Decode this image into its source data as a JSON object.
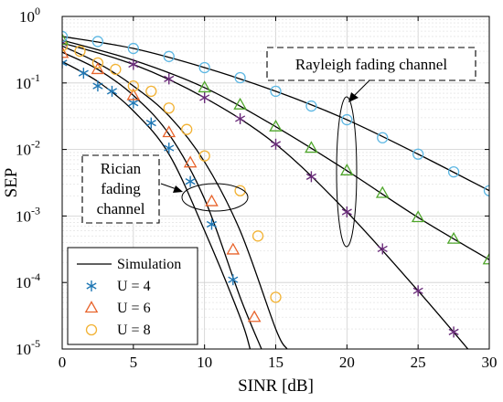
{
  "chart_data": {
    "type": "line",
    "xlabel": "SINR [dB]",
    "ylabel": "SEP",
    "xlim": [
      0,
      30
    ],
    "ylim": [
      1e-05,
      1
    ],
    "yscale": "log",
    "grid": true,
    "xticks": [
      0,
      5,
      10,
      15,
      20,
      25,
      30
    ],
    "xtick_labels": [
      "0",
      "5",
      "10",
      "15",
      "20",
      "25",
      "30"
    ],
    "yticks": [
      1e-05,
      0.0001,
      0.001,
      0.01,
      0.1,
      1
    ],
    "ytick_labels": [
      {
        "base": "10",
        "exp": "-5"
      },
      {
        "base": "10",
        "exp": "-4"
      },
      {
        "base": "10",
        "exp": "-3"
      },
      {
        "base": "10",
        "exp": "-2"
      },
      {
        "base": "10",
        "exp": "-1"
      },
      {
        "base": "10",
        "exp": "0"
      }
    ],
    "legend": {
      "position": "bottom-left",
      "entries": [
        {
          "label": "Simulation",
          "style": "line",
          "color": "#000000"
        },
        {
          "label": "U = 4",
          "style": "asterisk",
          "color": "#1f77b4"
        },
        {
          "label": "U = 6",
          "style": "triangle",
          "color": "#e8642c"
        },
        {
          "label": "U = 8",
          "style": "circle",
          "color": "#f2b233"
        }
      ]
    },
    "annotations": [
      {
        "lines": [
          "Rayleigh fading channel"
        ]
      },
      {
        "lines": [
          "Rician",
          "fading",
          "channel"
        ]
      }
    ],
    "series": [
      {
        "name": "U = 4",
        "group": "Rician",
        "marker": "asterisk",
        "color": "#1f77b4",
        "curve_x": [
          0,
          2.5,
          5,
          7.5,
          10,
          12.5,
          13.2
        ],
        "curve_y": [
          0.21,
          0.105,
          0.038,
          0.0085,
          0.0006,
          3e-05,
          1e-05
        ],
        "x": [
          0,
          1.5,
          2.5,
          3.5,
          5,
          6.25,
          7.5,
          9,
          10.5,
          12
        ],
        "y": [
          0.2,
          0.14,
          0.09,
          0.075,
          0.05,
          0.025,
          0.0105,
          0.0033,
          0.00075,
          0.00011
        ]
      },
      {
        "name": "U = 6",
        "group": "Rician",
        "marker": "triangle",
        "color": "#e8642c",
        "curve_x": [
          0,
          2.5,
          5,
          7.5,
          10,
          12.5,
          14
        ],
        "curve_y": [
          0.29,
          0.16,
          0.065,
          0.017,
          0.0018,
          6e-05,
          1e-05
        ],
        "x": [
          0,
          2.5,
          5,
          7.5,
          9,
          10.5,
          12,
          13.5
        ],
        "y": [
          0.28,
          0.16,
          0.065,
          0.018,
          0.0063,
          0.00165,
          0.00031,
          3e-05
        ]
      },
      {
        "name": "U = 8",
        "group": "Rician",
        "marker": "circle",
        "color": "#f2b233",
        "curve_x": [
          0,
          2.5,
          5,
          7.5,
          10,
          12.5,
          15,
          15.8
        ],
        "curve_y": [
          0.36,
          0.2,
          0.09,
          0.032,
          0.0065,
          0.0006,
          2e-05,
          1e-05
        ],
        "x": [
          0,
          1.25,
          2.5,
          3.75,
          5,
          6.25,
          7.5,
          8.75,
          10,
          12.5,
          13.75,
          15
        ],
        "y": [
          0.36,
          0.3,
          0.2,
          0.16,
          0.09,
          0.075,
          0.042,
          0.02,
          0.008,
          0.0024,
          0.0005,
          6e-05
        ]
      },
      {
        "name": "U = 4",
        "group": "Rayleigh",
        "marker": "asterisk",
        "color": "#6a2c7a",
        "curve_x": [
          0,
          5,
          10,
          15,
          20,
          25,
          28.5
        ],
        "curve_y": [
          0.4,
          0.19,
          0.06,
          0.012,
          0.00115,
          7.5e-05,
          1e-05
        ],
        "x": [
          0,
          5,
          7.5,
          10,
          12.5,
          15,
          17.5,
          20,
          22.5,
          25,
          27.5
        ],
        "y": [
          0.4,
          0.19,
          0.115,
          0.06,
          0.029,
          0.012,
          0.0039,
          0.00115,
          0.00032,
          7.5e-05,
          1.8e-05
        ]
      },
      {
        "name": "U = 6",
        "group": "Rayleigh",
        "marker": "triangle",
        "color": "#4fa62b",
        "curve_x": [
          0,
          5,
          10,
          15,
          20,
          25,
          30
        ],
        "curve_y": [
          0.44,
          0.22,
          0.085,
          0.022,
          0.0048,
          0.00095,
          0.00022
        ],
        "x": [
          0,
          10,
          12.5,
          15,
          17.5,
          20,
          22.5,
          25,
          27.5,
          30
        ],
        "y": [
          0.44,
          0.085,
          0.047,
          0.022,
          0.0105,
          0.0048,
          0.0022,
          0.00095,
          0.00045,
          0.00022
        ]
      },
      {
        "name": "U = 8",
        "group": "Rayleigh",
        "marker": "circle",
        "color": "#5db7e3",
        "curve_x": [
          0,
          5,
          10,
          15,
          20,
          25,
          30
        ],
        "curve_y": [
          0.5,
          0.33,
          0.17,
          0.075,
          0.028,
          0.0085,
          0.0024
        ],
        "x": [
          0,
          2.5,
          5,
          7.5,
          10,
          12.5,
          15,
          17.5,
          20,
          22.5,
          25,
          27.5,
          30
        ],
        "y": [
          0.5,
          0.42,
          0.33,
          0.25,
          0.17,
          0.12,
          0.075,
          0.045,
          0.028,
          0.015,
          0.0085,
          0.0046,
          0.0024
        ]
      }
    ]
  }
}
